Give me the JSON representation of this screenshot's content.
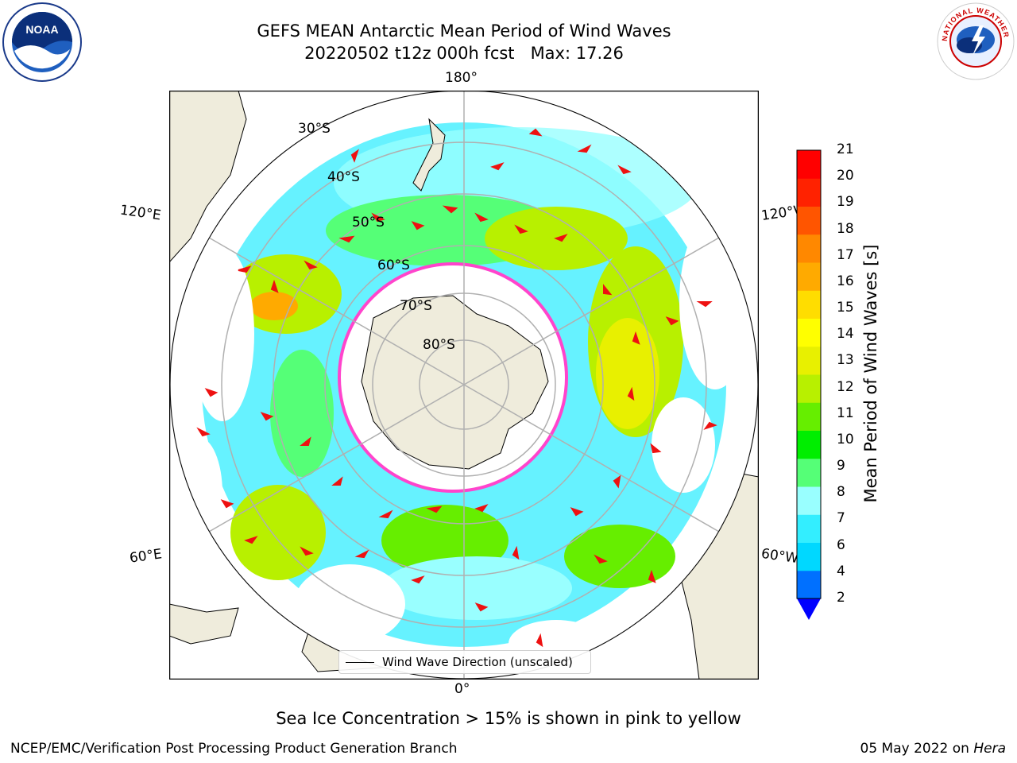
{
  "title_line1": "GEFS MEAN Antarctic Mean Period of Wind Waves",
  "title_line2": "20220502 t12z 000h fcst   Max: 17.26",
  "lon_labels": {
    "top": "180°",
    "bottom": "0°",
    "left_upper": "120°E",
    "right_upper": "120°W",
    "left_lower": "60°E",
    "right_lower": "60°W"
  },
  "lat_labels": [
    "30°S",
    "40°S",
    "50°S",
    "60°S",
    "70°S",
    "80°S"
  ],
  "legend": {
    "label": "Wind Wave Direction (unscaled)"
  },
  "colorbar": {
    "label": "Mean Period of Wind Waves [s]",
    "ticks": [
      "2",
      "4",
      "6",
      "7",
      "8",
      "9",
      "10",
      "11",
      "12",
      "13",
      "14",
      "15",
      "16",
      "17",
      "18",
      "19",
      "20",
      "21"
    ],
    "colors": [
      "#0070ff",
      "#00d8ff",
      "#33eeff",
      "#99ffff",
      "#55ff77",
      "#00ee00",
      "#66ee00",
      "#b8f000",
      "#e8f000",
      "#ffff00",
      "#ffdd00",
      "#ffaa00",
      "#ff8800",
      "#ff5500",
      "#ff2200",
      "#ff0000"
    ],
    "extend_color": "#0000ff"
  },
  "caption": "Sea Ice Concentration > 15% is shown in pink to yellow",
  "footer_left": "NCEP/EMC/Verification Post Processing Product Generation Branch",
  "footer_date": "05 May 2022 on",
  "footer_host": "Hera",
  "logos": {
    "noaa": "NOAA",
    "nws": "NATIONAL WEATHER SERVICE"
  },
  "colors": {
    "land": "#efecdc",
    "ocean_background": "#ffffff",
    "ice_edge": "#ff44cc",
    "arrow": "#ee1111",
    "grid": "#b0b0b0"
  }
}
